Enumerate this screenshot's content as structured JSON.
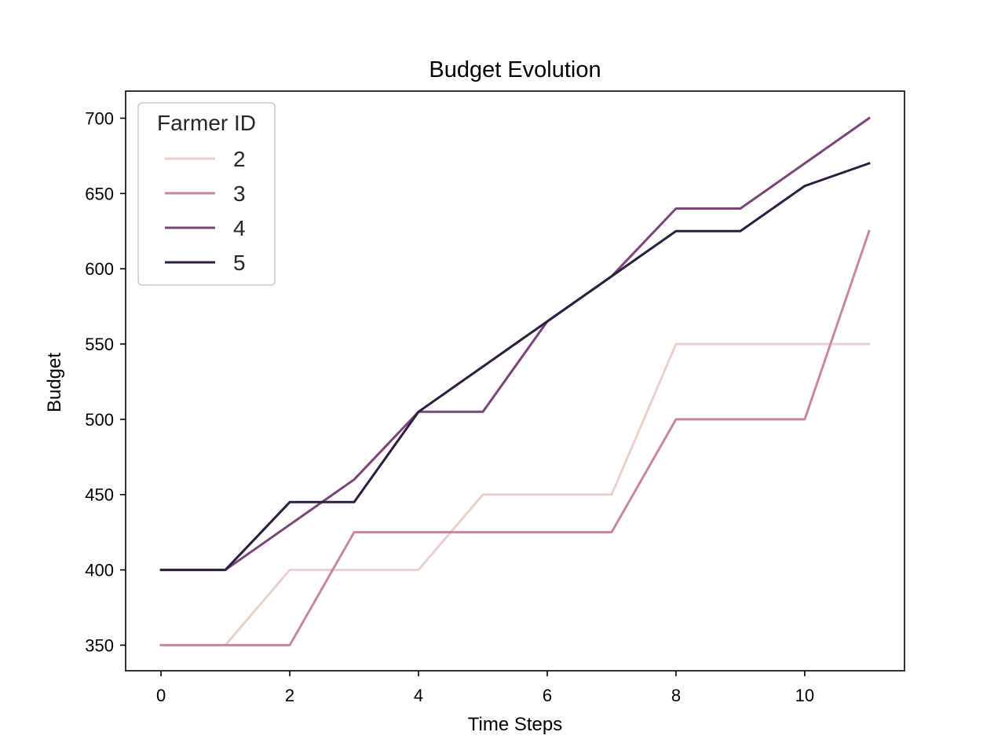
{
  "chart_data": {
    "type": "line",
    "title": "Budget Evolution",
    "xlabel": "Time Steps",
    "ylabel": "Budget",
    "xlim": [
      -0.55,
      11.55
    ],
    "ylim": [
      333,
      718
    ],
    "xticks": [
      0,
      2,
      4,
      6,
      8,
      10
    ],
    "yticks": [
      350,
      400,
      450,
      500,
      550,
      600,
      650,
      700
    ],
    "grid": false,
    "legend": {
      "title": "Farmer ID",
      "position": "top-left"
    },
    "x": [
      0,
      1,
      2,
      3,
      4,
      5,
      6,
      7,
      8,
      9,
      10,
      11
    ],
    "series": [
      {
        "name": "2",
        "color": "#ebd0c8",
        "values": [
          350,
          350,
          400,
          400,
          400,
          450,
          450,
          450,
          550,
          550,
          550,
          550
        ]
      },
      {
        "name": "3",
        "color": "#c8869f",
        "values": [
          350,
          350,
          350,
          425,
          425,
          425,
          425,
          425,
          500,
          500,
          500,
          625
        ]
      },
      {
        "name": "4",
        "color": "#7a4577",
        "values": [
          400,
          400,
          430,
          460,
          505,
          505,
          565,
          595,
          640,
          640,
          670,
          700
        ]
      },
      {
        "name": "5",
        "color": "#2c1f3f",
        "values": [
          400,
          400,
          445,
          445,
          505,
          535,
          565,
          595,
          625,
          625,
          655,
          670
        ]
      }
    ]
  }
}
